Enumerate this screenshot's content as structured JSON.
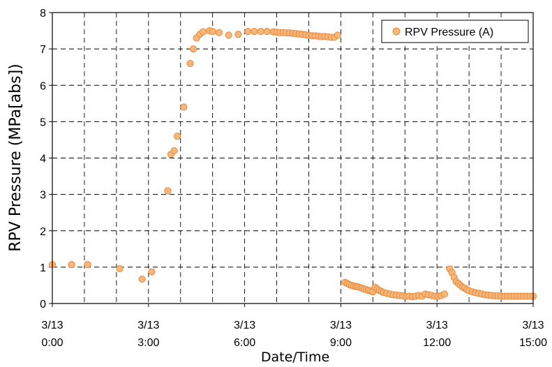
{
  "chart_data": {
    "type": "scatter",
    "xlabel": "Date/Time",
    "ylabel": "RPV Pressure (MPa[abs])",
    "xlim": [
      "3/13 0:00",
      "3/13 15:00"
    ],
    "ylim": [
      0,
      8
    ],
    "y_ticks": [
      "0",
      "1",
      "2",
      "3",
      "4",
      "5",
      "6",
      "7",
      "8"
    ],
    "x_ticks": [
      {
        "date": "3/13",
        "time": "0:00"
      },
      {
        "date": "3/13",
        "time": "3:00"
      },
      {
        "date": "3/13",
        "time": "6:00"
      },
      {
        "date": "3/13",
        "time": "9:00"
      },
      {
        "date": "3/13",
        "time": "12:00"
      },
      {
        "date": "3/13",
        "time": "15:00"
      }
    ],
    "grid": {
      "x_every_hours": 1,
      "y_every": 1,
      "style": "dashed"
    },
    "legend_position": "top-right",
    "marker_fill": "#f7b77a",
    "marker_stroke": "#e8893a",
    "series": [
      {
        "name": "RPV Pressure (A)",
        "points": [
          [
            "3/13 0:00",
            1.07
          ],
          [
            "3/13 0:36",
            1.07
          ],
          [
            "3/13 1:06",
            1.07
          ],
          [
            "3/13 2:06",
            0.96
          ],
          [
            "3/13 2:48",
            0.67
          ],
          [
            "3/13 3:06",
            0.87
          ],
          [
            "3/13 3:36",
            3.1
          ],
          [
            "3/13 3:42",
            4.1
          ],
          [
            "3/13 3:48",
            4.2
          ],
          [
            "3/13 3:54",
            4.6
          ],
          [
            "3/13 4:06",
            5.4
          ],
          [
            "3/13 4:18",
            6.6
          ],
          [
            "3/13 4:24",
            7.0
          ],
          [
            "3/13 4:30",
            7.3
          ],
          [
            "3/13 4:36",
            7.4
          ],
          [
            "3/13 4:42",
            7.47
          ],
          [
            "3/13 4:54",
            7.5
          ],
          [
            "3/13 5:00",
            7.48
          ],
          [
            "3/13 5:12",
            7.45
          ],
          [
            "3/13 5:30",
            7.38
          ],
          [
            "3/13 5:48",
            7.4
          ],
          [
            "3/13 6:06",
            7.48
          ],
          [
            "3/13 6:18",
            7.48
          ],
          [
            "3/13 6:30",
            7.48
          ],
          [
            "3/13 6:42",
            7.48
          ],
          [
            "3/13 6:54",
            7.47
          ],
          [
            "3/13 7:00",
            7.46
          ],
          [
            "3/13 7:06",
            7.45
          ],
          [
            "3/13 7:12",
            7.45
          ],
          [
            "3/13 7:18",
            7.44
          ],
          [
            "3/13 7:24",
            7.44
          ],
          [
            "3/13 7:30",
            7.43
          ],
          [
            "3/13 7:36",
            7.42
          ],
          [
            "3/13 7:42",
            7.41
          ],
          [
            "3/13 7:48",
            7.4
          ],
          [
            "3/13 7:54",
            7.39
          ],
          [
            "3/13 8:00",
            7.37
          ],
          [
            "3/13 8:06",
            7.36
          ],
          [
            "3/13 8:12",
            7.36
          ],
          [
            "3/13 8:18",
            7.35
          ],
          [
            "3/13 8:24",
            7.34
          ],
          [
            "3/13 8:30",
            7.34
          ],
          [
            "3/13 8:36",
            7.33
          ],
          [
            "3/13 8:42",
            7.32
          ],
          [
            "3/13 8:48",
            7.32
          ],
          [
            "3/13 8:54",
            7.38
          ],
          [
            "3/13 9:08",
            0.58
          ],
          [
            "3/13 9:12",
            0.55
          ],
          [
            "3/13 9:16",
            0.52
          ],
          [
            "3/13 9:20",
            0.5
          ],
          [
            "3/13 9:24",
            0.48
          ],
          [
            "3/13 9:28",
            0.47
          ],
          [
            "3/13 9:32",
            0.46
          ],
          [
            "3/13 9:36",
            0.44
          ],
          [
            "3/13 9:40",
            0.42
          ],
          [
            "3/13 9:44",
            0.4
          ],
          [
            "3/13 9:48",
            0.38
          ],
          [
            "3/13 9:52",
            0.36
          ],
          [
            "3/13 9:56",
            0.34
          ],
          [
            "3/13 10:00",
            0.32
          ],
          [
            "3/13 10:04",
            0.45
          ],
          [
            "3/13 10:08",
            0.4
          ],
          [
            "3/13 10:12",
            0.36
          ],
          [
            "3/13 10:16",
            0.33
          ],
          [
            "3/13 10:20",
            0.3
          ],
          [
            "3/13 10:26",
            0.28
          ],
          [
            "3/13 10:32",
            0.26
          ],
          [
            "3/13 10:38",
            0.24
          ],
          [
            "3/13 10:44",
            0.23
          ],
          [
            "3/13 10:50",
            0.22
          ],
          [
            "3/13 10:56",
            0.21
          ],
          [
            "3/13 11:02",
            0.2
          ],
          [
            "3/13 11:08",
            0.2
          ],
          [
            "3/13 11:14",
            0.19
          ],
          [
            "3/13 11:20",
            0.2
          ],
          [
            "3/13 11:26",
            0.22
          ],
          [
            "3/13 11:32",
            0.2
          ],
          [
            "3/13 11:38",
            0.26
          ],
          [
            "3/13 11:44",
            0.24
          ],
          [
            "3/13 11:50",
            0.22
          ],
          [
            "3/13 11:56",
            0.2
          ],
          [
            "3/13 12:02",
            0.2
          ],
          [
            "3/13 12:08",
            0.22
          ],
          [
            "3/13 12:14",
            0.26
          ],
          [
            "3/13 12:24",
            0.95
          ],
          [
            "3/13 12:28",
            0.85
          ],
          [
            "3/13 12:32",
            0.72
          ],
          [
            "3/13 12:36",
            0.6
          ],
          [
            "3/13 12:40",
            0.55
          ],
          [
            "3/13 12:44",
            0.5
          ],
          [
            "3/13 12:48",
            0.45
          ],
          [
            "3/13 12:52",
            0.42
          ],
          [
            "3/13 12:56",
            0.38
          ],
          [
            "3/13 13:00",
            0.35
          ],
          [
            "3/13 13:06",
            0.32
          ],
          [
            "3/13 13:12",
            0.3
          ],
          [
            "3/13 13:18",
            0.28
          ],
          [
            "3/13 13:24",
            0.26
          ],
          [
            "3/13 13:30",
            0.24
          ],
          [
            "3/13 13:36",
            0.23
          ],
          [
            "3/13 13:42",
            0.22
          ],
          [
            "3/13 13:48",
            0.21
          ],
          [
            "3/13 13:54",
            0.21
          ],
          [
            "3/13 14:00",
            0.2
          ],
          [
            "3/13 14:06",
            0.2
          ],
          [
            "3/13 14:12",
            0.2
          ],
          [
            "3/13 14:18",
            0.2
          ],
          [
            "3/13 14:24",
            0.2
          ],
          [
            "3/13 14:30",
            0.2
          ],
          [
            "3/13 14:36",
            0.2
          ],
          [
            "3/13 14:42",
            0.2
          ],
          [
            "3/13 14:48",
            0.2
          ],
          [
            "3/13 14:54",
            0.2
          ],
          [
            "3/13 15:00",
            0.2
          ]
        ]
      }
    ]
  }
}
